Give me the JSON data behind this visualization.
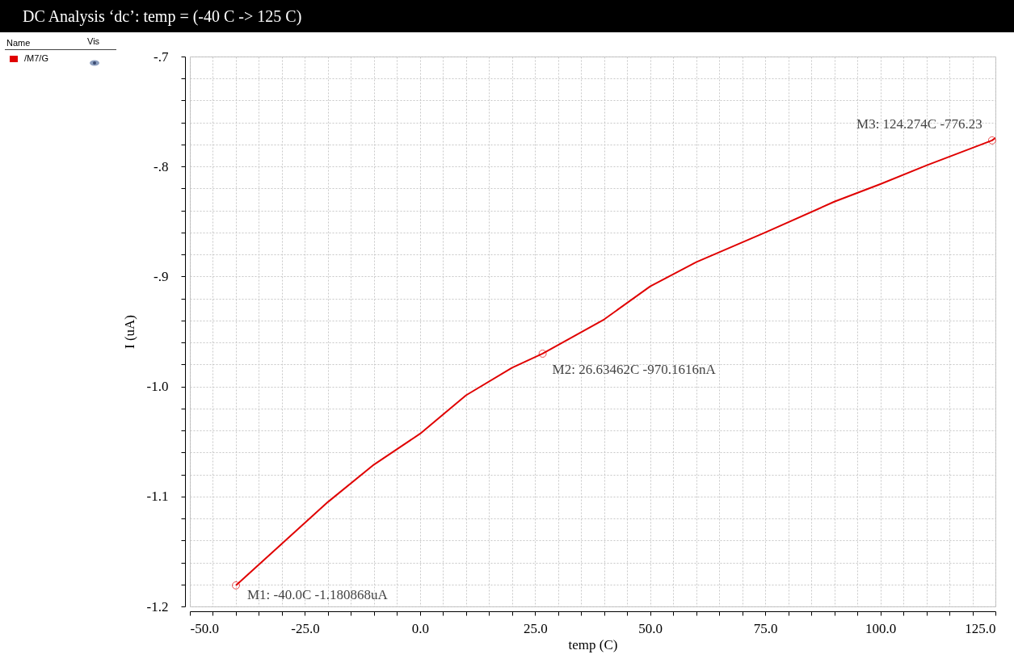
{
  "chart_data": {
    "type": "line",
    "title": "DC Analysis ‘dc’: temp = (-40 C -> 125 C)",
    "xlabel": "temp (C)",
    "ylabel": "I (uA)",
    "legend_title": "Name",
    "x": [
      -40,
      -30,
      -20,
      -10,
      0,
      10,
      20,
      26.63462,
      40,
      50,
      60,
      75,
      90,
      100,
      110,
      124.274,
      125
    ],
    "series": [
      {
        "name": "/M7/G",
        "color": "#e00000",
        "values": [
          -1.180868,
          -1.143,
          -1.105,
          -1.071,
          -1.043,
          -1.008,
          -0.983,
          -0.9701616,
          -0.939,
          -0.909,
          -0.887,
          -0.86,
          -0.832,
          -0.816,
          -0.799,
          -0.77623,
          -0.774
        ]
      }
    ],
    "xlim": [
      -50,
      125
    ],
    "ylim": [
      -1.2,
      -0.7
    ],
    "xticks": [
      {
        "value": -50,
        "label": "-50.0"
      },
      {
        "value": -45,
        "label": null
      },
      {
        "value": -40,
        "label": null
      },
      {
        "value": -35,
        "label": null
      },
      {
        "value": -30,
        "label": null
      },
      {
        "value": -25,
        "label": "-25.0"
      },
      {
        "value": -20,
        "label": null
      },
      {
        "value": -15,
        "label": null
      },
      {
        "value": -10,
        "label": null
      },
      {
        "value": -5,
        "label": null
      },
      {
        "value": 0,
        "label": "0.0"
      },
      {
        "value": 5,
        "label": null
      },
      {
        "value": 10,
        "label": null
      },
      {
        "value": 15,
        "label": null
      },
      {
        "value": 20,
        "label": null
      },
      {
        "value": 25,
        "label": "25.0"
      },
      {
        "value": 30,
        "label": null
      },
      {
        "value": 35,
        "label": null
      },
      {
        "value": 40,
        "label": null
      },
      {
        "value": 45,
        "label": null
      },
      {
        "value": 50,
        "label": "50.0"
      },
      {
        "value": 55,
        "label": null
      },
      {
        "value": 60,
        "label": null
      },
      {
        "value": 65,
        "label": null
      },
      {
        "value": 70,
        "label": null
      },
      {
        "value": 75,
        "label": "75.0"
      },
      {
        "value": 80,
        "label": null
      },
      {
        "value": 85,
        "label": null
      },
      {
        "value": 90,
        "label": null
      },
      {
        "value": 95,
        "label": null
      },
      {
        "value": 100,
        "label": "100.0"
      },
      {
        "value": 105,
        "label": null
      },
      {
        "value": 110,
        "label": null
      },
      {
        "value": 115,
        "label": null
      },
      {
        "value": 120,
        "label": null
      },
      {
        "value": 125,
        "label": "125.0"
      }
    ],
    "yticks": [
      {
        "value": -1.2,
        "label": "-1.2"
      },
      {
        "value": -1.18,
        "label": null
      },
      {
        "value": -1.16,
        "label": null
      },
      {
        "value": -1.14,
        "label": null
      },
      {
        "value": -1.12,
        "label": null
      },
      {
        "value": -1.1,
        "label": "-1.1"
      },
      {
        "value": -1.08,
        "label": null
      },
      {
        "value": -1.06,
        "label": null
      },
      {
        "value": -1.04,
        "label": null
      },
      {
        "value": -1.02,
        "label": null
      },
      {
        "value": -1.0,
        "label": "-1.0"
      },
      {
        "value": -0.98,
        "label": null
      },
      {
        "value": -0.96,
        "label": null
      },
      {
        "value": -0.94,
        "label": null
      },
      {
        "value": -0.92,
        "label": null
      },
      {
        "value": -0.9,
        "label": "-.9"
      },
      {
        "value": -0.88,
        "label": null
      },
      {
        "value": -0.86,
        "label": null
      },
      {
        "value": -0.84,
        "label": null
      },
      {
        "value": -0.82,
        "label": null
      },
      {
        "value": -0.8,
        "label": "-.8"
      },
      {
        "value": -0.78,
        "label": null
      },
      {
        "value": -0.76,
        "label": null
      },
      {
        "value": -0.74,
        "label": null
      },
      {
        "value": -0.72,
        "label": null
      },
      {
        "value": -0.7,
        "label": "-.7"
      }
    ],
    "grid": true,
    "legend": "top left",
    "marker": "none",
    "line_style": "solid",
    "annotations": [
      {
        "text": "M1: -40.0C -1.180868uA",
        "x": -40,
        "y": -1.180868
      },
      {
        "text": "M2: 26.63462C -970.1616nA",
        "x": 26.63462,
        "y": -0.9701616
      },
      {
        "text": "M3: 124.274C -776.23",
        "x": 124.274,
        "y": -0.77623
      },
      "Vis"
    ]
  }
}
